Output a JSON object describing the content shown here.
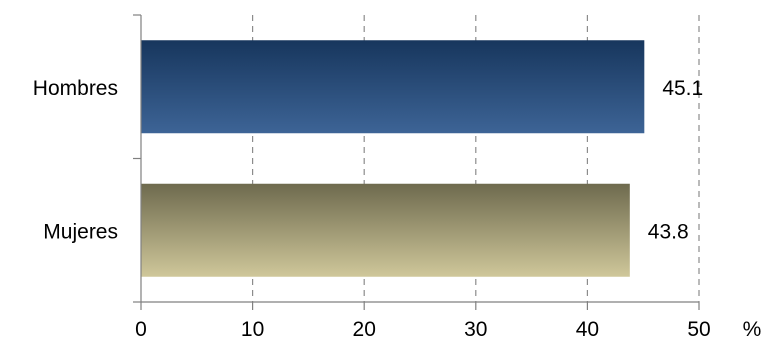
{
  "chart_data": {
    "type": "bar",
    "orientation": "horizontal",
    "title": "",
    "xlabel": "",
    "ylabel": "",
    "unit": "%",
    "categories": [
      "Hombres",
      "Mujeres"
    ],
    "values": [
      45.1,
      43.8
    ],
    "value_labels": [
      "45.1",
      "43.8"
    ],
    "xlim": [
      0,
      50
    ],
    "xticks": [
      "0",
      "10",
      "20",
      "30",
      "40",
      "50"
    ],
    "grid": "vertical-dashed",
    "legend": "none",
    "colors": {
      "Hombres": {
        "top": "#17365d",
        "bottom": "#3d6496"
      },
      "Mujeres": {
        "top": "#6e6a4e",
        "bottom": "#cfc79a"
      }
    }
  }
}
